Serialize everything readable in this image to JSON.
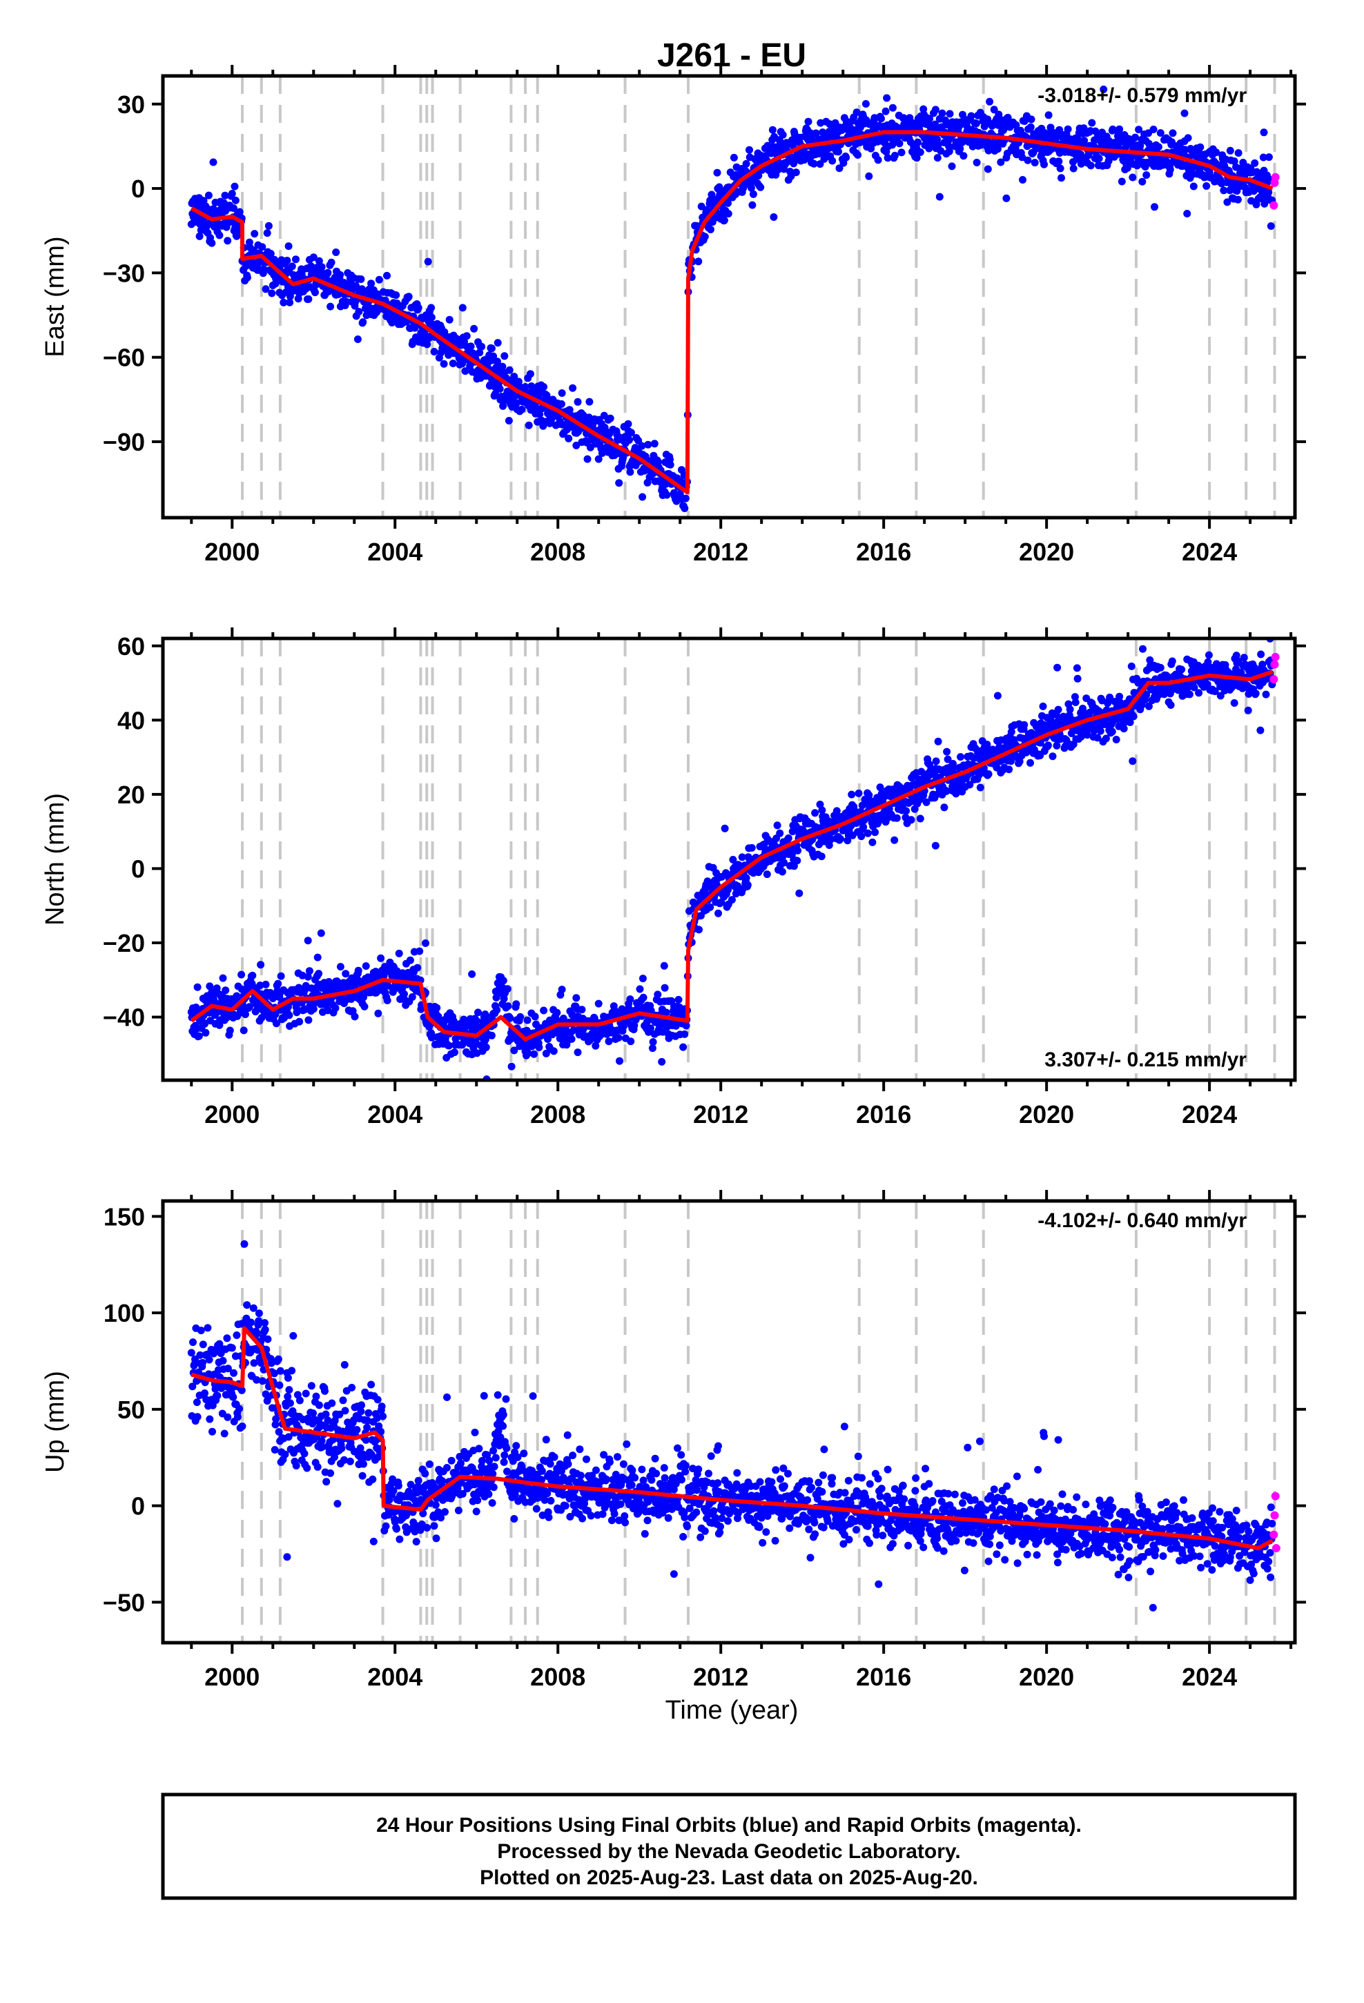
{
  "figure": {
    "title": "J261 - EU",
    "xlabel": "Time (year)",
    "footer": [
      "24 Hour Positions Using Final Orbits (blue) and Rapid Orbits (magenta).",
      "Processed by the Nevada Geodetic Laboratory.",
      "Plotted on 2025-Aug-23. Last data on 2025-Aug-20."
    ],
    "colors": {
      "final_orbits": "#0000ff",
      "rapid_orbits": "#ff00ff",
      "model": "#ff0000",
      "event_lines": "#c8c8c8"
    }
  },
  "chart_data": [
    {
      "type": "scatter",
      "component": "east",
      "ylabel": "East (mm)",
      "rate_label": "-3.018+/- 0.579 mm/yr",
      "rate_position": "top-right",
      "xlim": [
        1998.3,
        2026.1
      ],
      "ylim": [
        -117,
        40
      ],
      "x_ticks": [
        2000,
        2004,
        2008,
        2012,
        2016,
        2020,
        2024
      ],
      "y_ticks": [
        30,
        0,
        -30,
        -60,
        -90
      ],
      "event_lines": [
        2000.25,
        2000.72,
        2001.18,
        2003.7,
        2004.63,
        2004.78,
        2004.92,
        2005.6,
        2006.85,
        2007.2,
        2007.5,
        2009.65,
        2011.2,
        2015.4,
        2016.8,
        2018.45,
        2022.2,
        2024.0,
        2024.9,
        2025.6
      ],
      "model": {
        "x": [
          1999.0,
          1999.5,
          2000.0,
          2000.25,
          2000.25,
          2000.72,
          2001.18,
          2001.5,
          2002.0,
          2003.0,
          2003.7,
          2004.63,
          2005.0,
          2006.0,
          2007.0,
          2008.0,
          2009.0,
          2010.0,
          2011.18,
          2011.2,
          2011.3,
          2011.6,
          2012.0,
          2012.5,
          2013.0,
          2014.0,
          2015.0,
          2016.0,
          2017.0,
          2018.0,
          2019.0,
          2020.0,
          2021.0,
          2022.0,
          2023.0,
          2024.0,
          2024.5,
          2025.0,
          2025.55
        ],
        "y": [
          -7,
          -11,
          -10,
          -12,
          -25,
          -24,
          -30,
          -34,
          -32,
          -38,
          -41,
          -48,
          -52,
          -62,
          -72,
          -79,
          -88,
          -96,
          -108,
          -32,
          -22,
          -12,
          -5,
          3,
          8,
          15,
          17,
          20,
          20,
          19,
          18,
          16,
          14,
          13,
          12,
          8,
          4,
          3,
          0
        ]
      },
      "scatter": {
        "scatter_sd": 4,
        "rapid_x": [
          2025.58,
          2025.6,
          2025.62
        ],
        "rapid_y": [
          -6,
          2,
          4
        ]
      }
    },
    {
      "type": "scatter",
      "component": "north",
      "ylabel": "North (mm)",
      "rate_label": "3.307+/- 0.215 mm/yr",
      "rate_position": "bottom-right",
      "xlim": [
        1998.3,
        2026.1
      ],
      "ylim": [
        -57,
        62
      ],
      "x_ticks": [
        2000,
        2004,
        2008,
        2012,
        2016,
        2020,
        2024
      ],
      "y_ticks": [
        60,
        40,
        20,
        0,
        -20,
        -40
      ],
      "event_lines": [
        2000.25,
        2000.72,
        2001.18,
        2003.7,
        2004.63,
        2004.78,
        2004.92,
        2005.6,
        2006.85,
        2007.2,
        2007.5,
        2009.65,
        2011.2,
        2015.4,
        2016.8,
        2018.45,
        2022.2,
        2024.0,
        2024.9,
        2025.6
      ],
      "model": {
        "x": [
          1999.0,
          1999.5,
          2000.0,
          2000.5,
          2001.0,
          2001.5,
          2002.0,
          2003.0,
          2003.7,
          2004.63,
          2004.8,
          2005.2,
          2006.0,
          2006.6,
          2007.2,
          2008.0,
          2009.0,
          2010.0,
          2011.18,
          2011.2,
          2011.4,
          2012.0,
          2013.0,
          2014.0,
          2015.0,
          2016.0,
          2017.0,
          2018.0,
          2019.0,
          2020.0,
          2021.0,
          2022.0,
          2022.5,
          2023.0,
          2024.0,
          2025.0,
          2025.55
        ],
        "y": [
          -41,
          -37,
          -38,
          -33,
          -38,
          -35,
          -35,
          -33,
          -30,
          -31,
          -40,
          -44,
          -45,
          -40,
          -46,
          -42,
          -42,
          -39,
          -41,
          -22,
          -11,
          -5,
          3,
          8,
          12,
          17,
          22,
          26,
          31,
          36,
          40,
          43,
          50,
          50,
          52,
          51,
          53
        ]
      },
      "scatter": {
        "scatter_sd": 3,
        "rapid_x": [
          2025.58,
          2025.6,
          2025.62
        ],
        "rapid_y": [
          51,
          55,
          57
        ]
      }
    },
    {
      "type": "scatter",
      "component": "up",
      "ylabel": "Up (mm)",
      "rate_label": "-4.102+/- 0.640 mm/yr",
      "rate_position": "top-right",
      "xlim": [
        1998.3,
        2026.1
      ],
      "ylim": [
        -71,
        158
      ],
      "x_ticks": [
        2000,
        2004,
        2008,
        2012,
        2016,
        2020,
        2024
      ],
      "y_ticks": [
        150,
        100,
        50,
        0,
        -50
      ],
      "event_lines": [
        2000.25,
        2000.72,
        2001.18,
        2003.7,
        2004.63,
        2004.78,
        2004.92,
        2005.6,
        2006.85,
        2007.2,
        2007.5,
        2009.65,
        2011.2,
        2015.4,
        2016.8,
        2018.45,
        2022.2,
        2024.0,
        2024.9,
        2025.6
      ],
      "model": {
        "x": [
          1999.0,
          1999.5,
          2000.0,
          2000.25,
          2000.3,
          2000.72,
          2001.18,
          2001.3,
          2002.0,
          2003.0,
          2003.5,
          2003.7,
          2003.72,
          2004.63,
          2004.8,
          2005.6,
          2006.5,
          2007.2,
          2008.0,
          2010.0,
          2012.0,
          2014.0,
          2016.0,
          2018.0,
          2020.0,
          2022.0,
          2024.0,
          2025.2,
          2025.55
        ],
        "y": [
          68,
          65,
          64,
          62,
          92,
          82,
          48,
          40,
          38,
          35,
          38,
          34,
          0,
          -2,
          3,
          15,
          14,
          12,
          10,
          7,
          3,
          0,
          -4,
          -7,
          -10,
          -13,
          -17,
          -22,
          -18
        ]
      },
      "scatter": {
        "scatter_sd": 8,
        "rapid_x": [
          2025.58,
          2025.6,
          2025.62,
          2025.64
        ],
        "rapid_y": [
          -15,
          -5,
          5,
          -22
        ]
      }
    }
  ]
}
